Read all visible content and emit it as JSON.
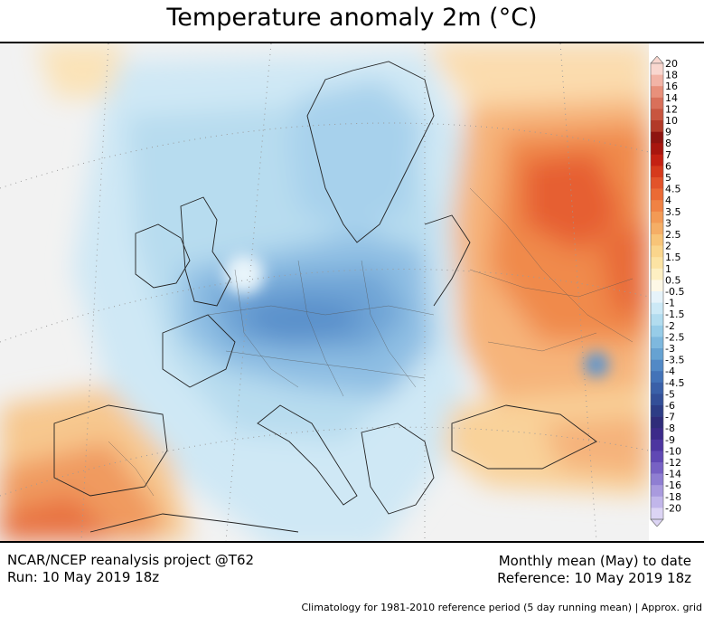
{
  "title": "Temperature anomaly 2m (°C)",
  "footer": {
    "left_line1": "NCAR/NCEP reanalysis project @T62",
    "left_line2": "Run: 10 May 2019 18z",
    "right_line1": "Monthly mean (May) to date",
    "right_line2": "Reference: 10 May 2019 18z",
    "note": "Climatology for 1981-2010 reference period (5 day running mean) | Approx. grid"
  },
  "colorbar": {
    "levels": [
      "20",
      "18",
      "16",
      "14",
      "12",
      "10",
      "9",
      "8",
      "7",
      "6",
      "5",
      "4.5",
      "4",
      "3.5",
      "3",
      "2.5",
      "2",
      "1.5",
      "1",
      "0.5",
      "-0.5",
      "-1",
      "-1.5",
      "-2",
      "-2.5",
      "-3",
      "-3.5",
      "-4",
      "-4.5",
      "-5",
      "-6",
      "-7",
      "-8",
      "-9",
      "-10",
      "-12",
      "-14",
      "-16",
      "-18",
      "-20"
    ],
    "colors": [
      "#f9d7cf",
      "#f2b4a6",
      "#e8907b",
      "#d9705a",
      "#c8553f",
      "#b23a28",
      "#8e1410",
      "#a8160f",
      "#c42113",
      "#d63a1c",
      "#e2532a",
      "#eb6a35",
      "#f08244",
      "#f39a55",
      "#f5ae66",
      "#f8c478",
      "#fad58c",
      "#fce3a3",
      "#fdefc2",
      "#fdf8e6",
      "#e6f3fa",
      "#cce9f6",
      "#b2dcef",
      "#97cce8",
      "#7eb8de",
      "#66a2d2",
      "#5289c6",
      "#4373b8",
      "#3a60a8",
      "#334f98",
      "#2d3d86",
      "#2f2c7a",
      "#3c2a8a",
      "#4d35a0",
      "#6048b4",
      "#7761c4",
      "#8f7ed2",
      "#a99ade",
      "#c1b6ea",
      "#dcd4f4"
    ]
  }
}
